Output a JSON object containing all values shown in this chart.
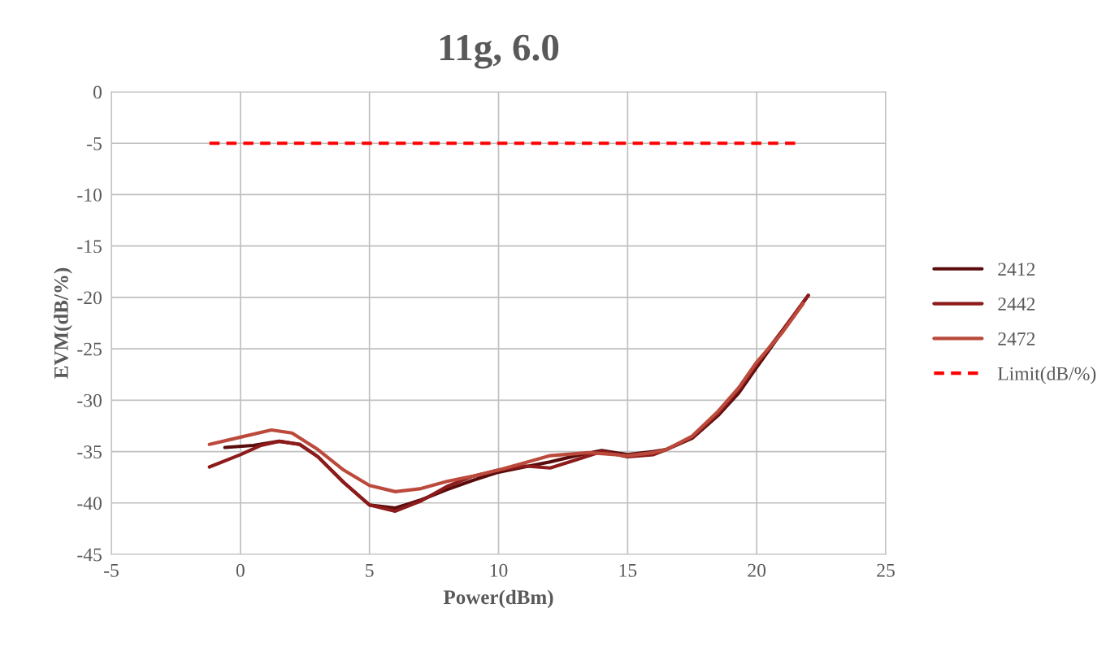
{
  "chart_data": {
    "type": "line",
    "title": "11g, 6.0",
    "xlabel": "Power(dBm)",
    "ylabel": "EVM(dB/%)",
    "xlim": [
      -5,
      25
    ],
    "xticks": [
      -5,
      0,
      5,
      10,
      15,
      20,
      25
    ],
    "ylim": [
      -45,
      0
    ],
    "yticks": [
      -45,
      -40,
      -35,
      -30,
      -25,
      -20,
      -15,
      -10,
      -5,
      0
    ],
    "grid": true,
    "legend": "right",
    "line_style": "solid",
    "marker": "none",
    "series": [
      {
        "name": "2412",
        "color": "#5a0c0c",
        "x": [
          -0.6,
          0.5,
          1.5,
          2.3,
          3,
          4,
          5,
          6,
          7,
          8,
          9,
          10,
          11,
          12,
          13,
          14,
          15,
          16,
          16.5,
          17.5,
          18.5,
          19.3,
          20,
          21,
          22
        ],
        "values": [
          -34.6,
          -34.4,
          -34,
          -34.3,
          -35.5,
          -38,
          -40.2,
          -40.5,
          -39.7,
          -38.7,
          -37.8,
          -37,
          -36.5,
          -36,
          -35.4,
          -34.9,
          -35.3,
          -35,
          -34.8,
          -33.7,
          -31.5,
          -29.3,
          -26.8,
          -23.3,
          -19.8
        ]
      },
      {
        "name": "2442",
        "color": "#8e1b1b",
        "x": [
          -1.2,
          0,
          0.8,
          1.5,
          2.3,
          3,
          4,
          5,
          6,
          7,
          8,
          9,
          10,
          11,
          12,
          13,
          14,
          15,
          16,
          16.5,
          17.5,
          18.5,
          19.3,
          20,
          21,
          22
        ],
        "values": [
          -36.5,
          -35.3,
          -34.4,
          -34,
          -34.3,
          -35.5,
          -38,
          -40.2,
          -40.8,
          -39.8,
          -38.4,
          -37.4,
          -36.8,
          -36.4,
          -36.6,
          -35.8,
          -35,
          -35.5,
          -35.3,
          -34.8,
          -33.6,
          -31.3,
          -29,
          -26.5,
          -23.2,
          -19.8
        ]
      },
      {
        "name": "2472",
        "color": "#bb4a3c",
        "x": [
          -1.2,
          0,
          1.2,
          2,
          3,
          4,
          5,
          6,
          7,
          8,
          9,
          10,
          11,
          12,
          13.5,
          15,
          16,
          16.5,
          17.5,
          18.5,
          19.3,
          20,
          21,
          21.8
        ],
        "values": [
          -34.3,
          -33.6,
          -32.9,
          -33.2,
          -34.8,
          -36.8,
          -38.3,
          -38.9,
          -38.6,
          -37.9,
          -37.4,
          -36.8,
          -36.1,
          -35.4,
          -35.1,
          -35.4,
          -35.1,
          -34.8,
          -33.5,
          -31.1,
          -28.8,
          -26.3,
          -23.4,
          -20.6
        ]
      },
      {
        "name": "Limit(dB/%)",
        "color": "#ff0000",
        "line_style": "dashed",
        "x": [
          -1.2,
          21.5
        ],
        "values": [
          -5,
          -5
        ]
      }
    ]
  }
}
